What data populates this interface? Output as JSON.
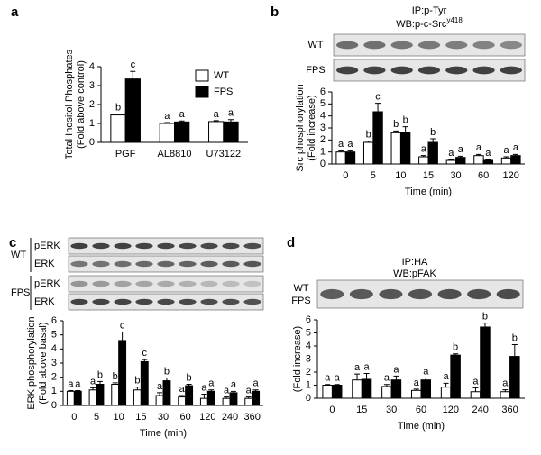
{
  "chart_data": [
    {
      "type": "bar",
      "panel": "a",
      "ylabel": [
        "Total Inositol Phosphates",
        "(Fold above control)"
      ],
      "categories": [
        "PGF",
        "AL8810",
        "U73122"
      ],
      "series": [
        {
          "name": "WT",
          "color": "#ffffff",
          "values": [
            1.45,
            1.0,
            1.1
          ],
          "errors": [
            0.05,
            0.05,
            0.05
          ],
          "letters": [
            "b",
            "a",
            "a"
          ]
        },
        {
          "name": "FPS",
          "color": "#000000",
          "values": [
            3.35,
            1.08,
            1.08
          ],
          "errors": [
            0.4,
            0.05,
            0.12
          ],
          "letters": [
            "c",
            "a",
            "a"
          ]
        }
      ],
      "ylim": [
        0,
        4
      ],
      "yticks": [
        0,
        1,
        2,
        3,
        4
      ],
      "legend": "upper right"
    },
    {
      "type": "bar",
      "panel": "b",
      "blot": {
        "title": [
          "IP:p-Tyr",
          "WB:p-c-Src"
        ],
        "title_superscript": "y418",
        "rows": [
          "WT",
          "FPS"
        ]
      },
      "ylabel": [
        "Src phosphorylation",
        "(Fold increase)"
      ],
      "xlabel": "Time (min)",
      "categories": [
        "0",
        "5",
        "10",
        "15",
        "30",
        "60",
        "120"
      ],
      "series": [
        {
          "name": "WT",
          "color": "#ffffff",
          "values": [
            1.0,
            1.8,
            2.6,
            0.6,
            0.3,
            0.7,
            0.5
          ],
          "errors": [
            0.1,
            0.1,
            0.15,
            0.1,
            0.05,
            0.1,
            0.1
          ],
          "letters": [
            "a",
            "b",
            "b",
            "a",
            "a",
            "a",
            "a"
          ]
        },
        {
          "name": "FPS",
          "color": "#000000",
          "values": [
            1.0,
            4.35,
            2.6,
            1.8,
            0.55,
            0.3,
            0.7
          ],
          "errors": [
            0.1,
            0.7,
            0.5,
            0.3,
            0.1,
            0.05,
            0.1
          ],
          "letters": [
            "a",
            "c",
            "b",
            "b",
            "a",
            "a",
            "a"
          ]
        }
      ],
      "ylim": [
        0,
        6
      ],
      "yticks": [
        0,
        1,
        2,
        3,
        4,
        5,
        6
      ]
    },
    {
      "type": "bar",
      "panel": "c",
      "blot": {
        "groups": [
          {
            "name": "WT",
            "lanes": [
              "pERK",
              "ERK"
            ]
          },
          {
            "name": "FPS",
            "lanes": [
              "pERK",
              "ERK"
            ]
          }
        ]
      },
      "ylabel": [
        "ERK phosphorylation",
        "(Fold above basal)"
      ],
      "xlabel": "Time (min)",
      "categories": [
        "0",
        "5",
        "10",
        "15",
        "30",
        "60",
        "120",
        "240",
        "360"
      ],
      "series": [
        {
          "name": "WT",
          "color": "#ffffff",
          "values": [
            1.0,
            1.1,
            1.5,
            1.1,
            0.7,
            0.6,
            0.5,
            0.5,
            0.5
          ],
          "errors": [
            0.05,
            0.15,
            0.1,
            0.2,
            0.2,
            0.1,
            0.3,
            0.1,
            0.1
          ],
          "letters": [
            "a",
            "a",
            "b",
            "b",
            "a",
            "a",
            "a",
            "a",
            "a"
          ]
        },
        {
          "name": "FPS",
          "color": "#000000",
          "values": [
            1.0,
            1.5,
            4.6,
            3.1,
            1.75,
            1.4,
            1.0,
            0.9,
            1.0
          ],
          "errors": [
            0.05,
            0.2,
            0.6,
            0.15,
            0.2,
            0.1,
            0.1,
            0.1,
            0.1
          ],
          "letters": [
            "a",
            "b",
            "c",
            "c",
            "b",
            "b",
            "a",
            "a",
            "a"
          ]
        }
      ],
      "ylim": [
        0,
        6
      ],
      "yticks": [
        0,
        1,
        2,
        3,
        4,
        5,
        6
      ]
    },
    {
      "type": "bar",
      "panel": "d",
      "blot": {
        "title": [
          "IP:HA",
          "WB:pFAK"
        ],
        "rows": [
          "WT",
          "FPS"
        ]
      },
      "ylabel": [
        "(Fold increase)"
      ],
      "xlabel": "Time (min)",
      "categories": [
        "0",
        "15",
        "30",
        "60",
        "120",
        "240",
        "360"
      ],
      "series": [
        {
          "name": "WT",
          "color": "#ffffff",
          "values": [
            1.0,
            1.4,
            0.9,
            0.6,
            0.85,
            0.5,
            0.5
          ],
          "errors": [
            0.05,
            0.45,
            0.15,
            0.1,
            0.3,
            0.3,
            0.15
          ],
          "letters": [
            "a",
            "a",
            "a",
            "a",
            "a",
            "a",
            "a"
          ]
        },
        {
          "name": "FPS",
          "color": "#000000",
          "values": [
            1.0,
            1.45,
            1.4,
            1.4,
            3.3,
            5.45,
            3.2
          ],
          "errors": [
            0.05,
            0.45,
            0.3,
            0.15,
            0.1,
            0.3,
            0.9
          ],
          "letters": [
            "a",
            "a",
            "a",
            "a",
            "b",
            "b",
            "b"
          ]
        }
      ],
      "ylim": [
        0,
        6
      ],
      "yticks": [
        0,
        1,
        2,
        3,
        4,
        5,
        6
      ]
    }
  ]
}
